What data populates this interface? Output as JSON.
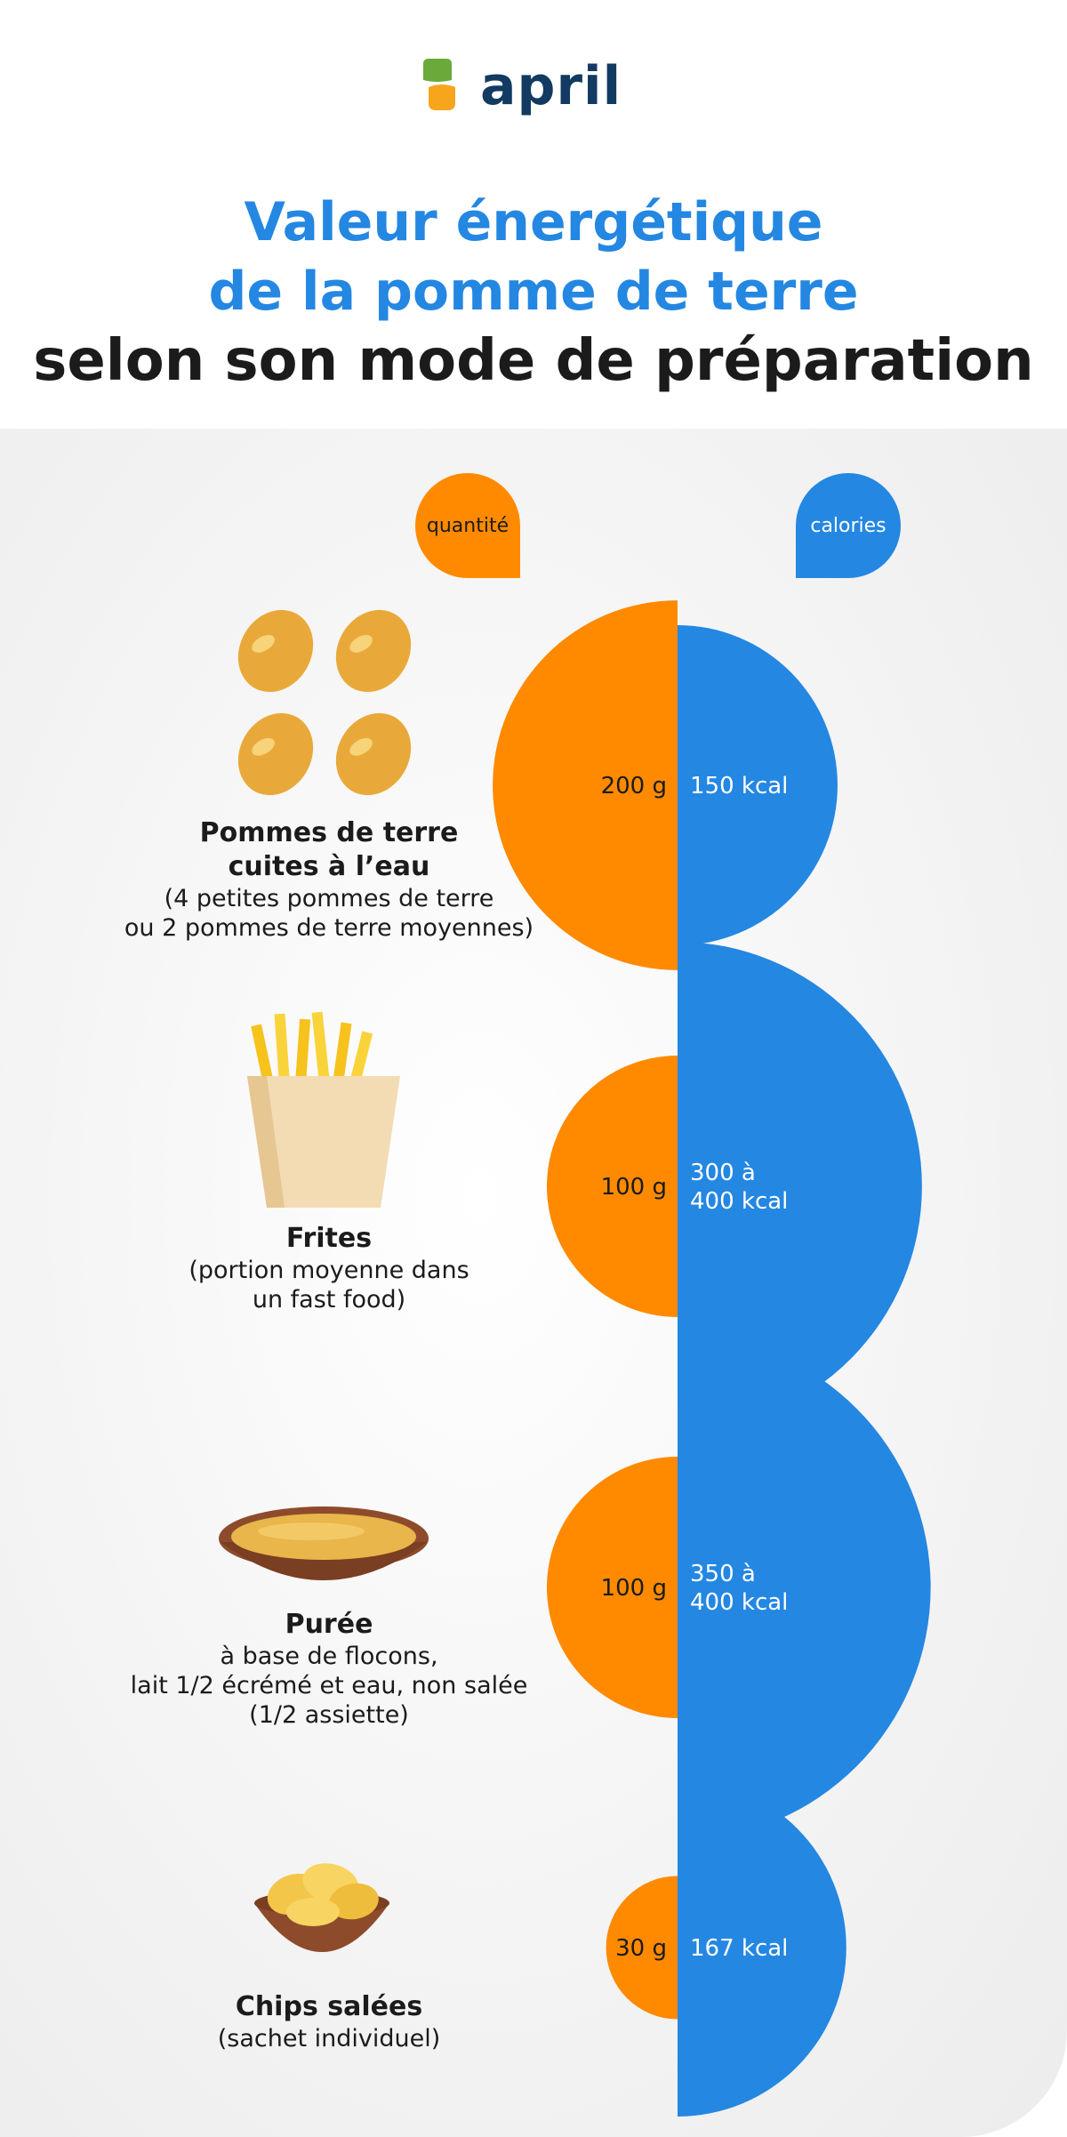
{
  "header": {
    "logo_text": "april",
    "title_line1": "Valeur énergétique",
    "title_line2": "de la pomme de terre",
    "title_line3": "selon son mode de préparation"
  },
  "legend": {
    "quantity_label": "quantité",
    "calories_label": "calories"
  },
  "colors": {
    "quantity": "#ff8a00",
    "calories": "#2487e2",
    "title_blue": "#2487e2",
    "text_dark": "#1b1b1b"
  },
  "items": [
    {
      "name": "Pommes de terre cuites à l’eau",
      "name_lines": [
        "Pommes de terre",
        "cuites à l’eau"
      ],
      "desc_lines": [
        "(4 petites pommes de terre",
        "ou 2 pommes de terre moyennes)"
      ],
      "icon": "boiled-potatoes-icon"
    },
    {
      "name": "Frites",
      "name_lines": [
        "Frites"
      ],
      "desc_lines": [
        "(portion moyenne dans",
        "un fast food)"
      ],
      "icon": "fries-icon"
    },
    {
      "name": "Purée",
      "name_lines": [
        "Purée"
      ],
      "desc_lines": [
        "à base de flocons,",
        "lait 1/2 écrémé et eau, non salée",
        "(1/2 assiette)"
      ],
      "icon": "puree-bowl-icon"
    },
    {
      "name": "Chips salées",
      "name_lines": [
        "Chips salées"
      ],
      "desc_lines": [
        "(sachet individuel)"
      ],
      "icon": "chips-bowl-icon"
    }
  ],
  "chart_data": {
    "type": "paired-half-circles",
    "series": [
      {
        "name": "quantité",
        "values": [
          200,
          100,
          100,
          30
        ],
        "labels": [
          "200 g",
          "100 g",
          "100 g",
          "30 g"
        ]
      },
      {
        "name": "calories",
        "values": [
          150,
          350,
          375,
          167
        ],
        "labels": [
          "150 kcal",
          "300 à 400 kcal",
          "350 à 400 kcal",
          "167 kcal"
        ],
        "label_lines": [
          [
            "150 kcal"
          ],
          [
            "300 à",
            "400 kcal"
          ],
          [
            "350 à",
            "400 kcal"
          ],
          [
            "167 kcal"
          ]
        ]
      }
    ],
    "categories": [
      "Pommes de terre cuites à l’eau",
      "Frites",
      "Purée",
      "Chips salées"
    ]
  }
}
